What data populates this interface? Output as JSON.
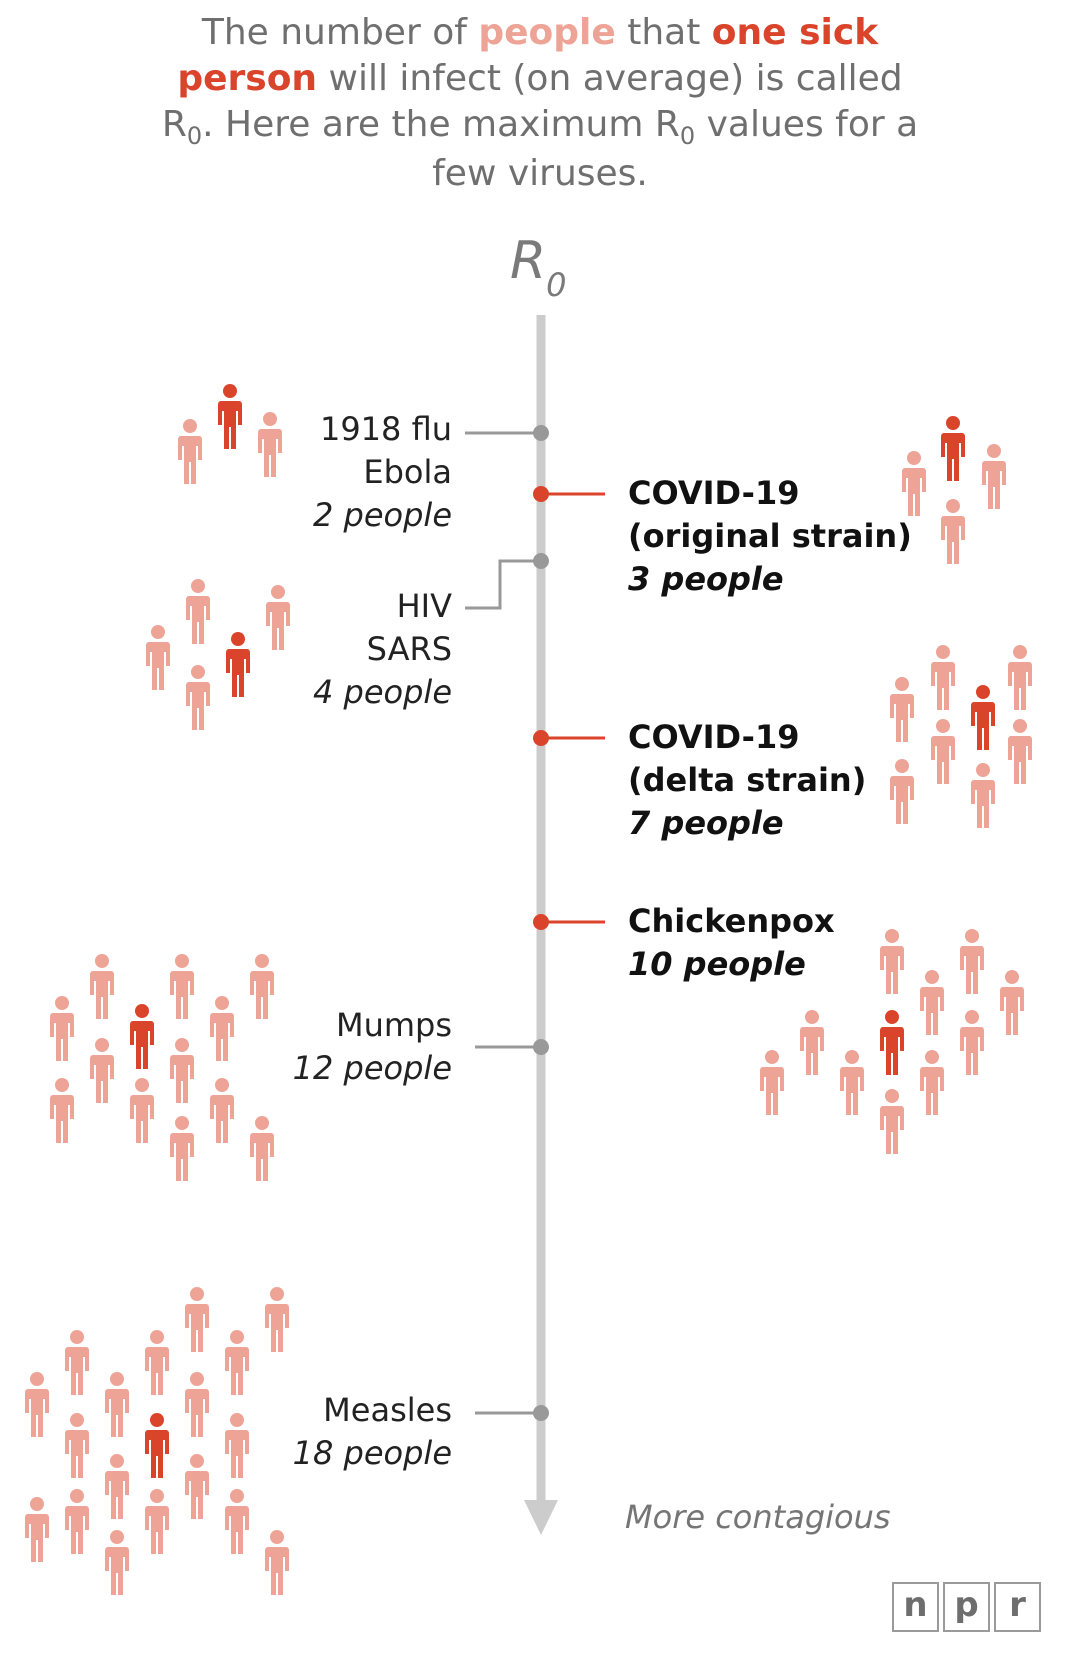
{
  "intro": {
    "part1": "The number of ",
    "people": "people",
    "part2": " that ",
    "one_sick_person": "one sick person",
    "part3": " will infect (on average) is called R",
    "sub1": "0",
    "part4": ". Here are the maximum R",
    "sub2": "0",
    "part5": " values for a few viruses."
  },
  "axis": {
    "label_main": "R",
    "label_sub": "0",
    "direction_label": "More contagious"
  },
  "colors": {
    "gray_line": "#999999",
    "axis": "#cccccc",
    "red": "#d9442b",
    "light": "#eda496"
  },
  "chart_data": {
    "type": "diagram",
    "axis_title": "R0",
    "direction": "More contagious",
    "entries": [
      {
        "viruses": [
          "1918 flu",
          "Ebola"
        ],
        "r0": 2,
        "people": "2 people",
        "highlight": false
      },
      {
        "viruses": [
          "COVID-19 (original strain)"
        ],
        "r0": 3,
        "people": "3 people",
        "highlight": true
      },
      {
        "viruses": [
          "HIV",
          "SARS"
        ],
        "r0": 4,
        "people": "4 people",
        "highlight": false
      },
      {
        "viruses": [
          "COVID-19 (delta strain)"
        ],
        "r0": 7,
        "people": "7 people",
        "highlight": true
      },
      {
        "viruses": [
          "Chickenpox"
        ],
        "r0": 10,
        "people": "10 people",
        "highlight": true
      },
      {
        "viruses": [
          "Mumps"
        ],
        "r0": 12,
        "people": "12 people",
        "highlight": false
      },
      {
        "viruses": [
          "Measles"
        ],
        "r0": 18,
        "people": "18 people",
        "highlight": false
      }
    ]
  },
  "labels": {
    "flu": {
      "line1": "1918 flu",
      "line2": "Ebola",
      "count": "2 people"
    },
    "covid_orig": {
      "line1": "COVID-19",
      "line2": "(original strain)",
      "count": "3 people"
    },
    "hiv": {
      "line1": "HIV",
      "line2": "SARS",
      "count": "4 people"
    },
    "covid_delta": {
      "line1": "COVID-19",
      "line2": "(delta strain)",
      "count": "7 people"
    },
    "chickenpox": {
      "line1": "Chickenpox",
      "count": "10 people"
    },
    "mumps": {
      "line1": "Mumps",
      "count": "12 people"
    },
    "measles": {
      "line1": "Measles",
      "count": "18 people"
    }
  },
  "logo": {
    "l1": "n",
    "l2": "p",
    "l3": "r"
  }
}
